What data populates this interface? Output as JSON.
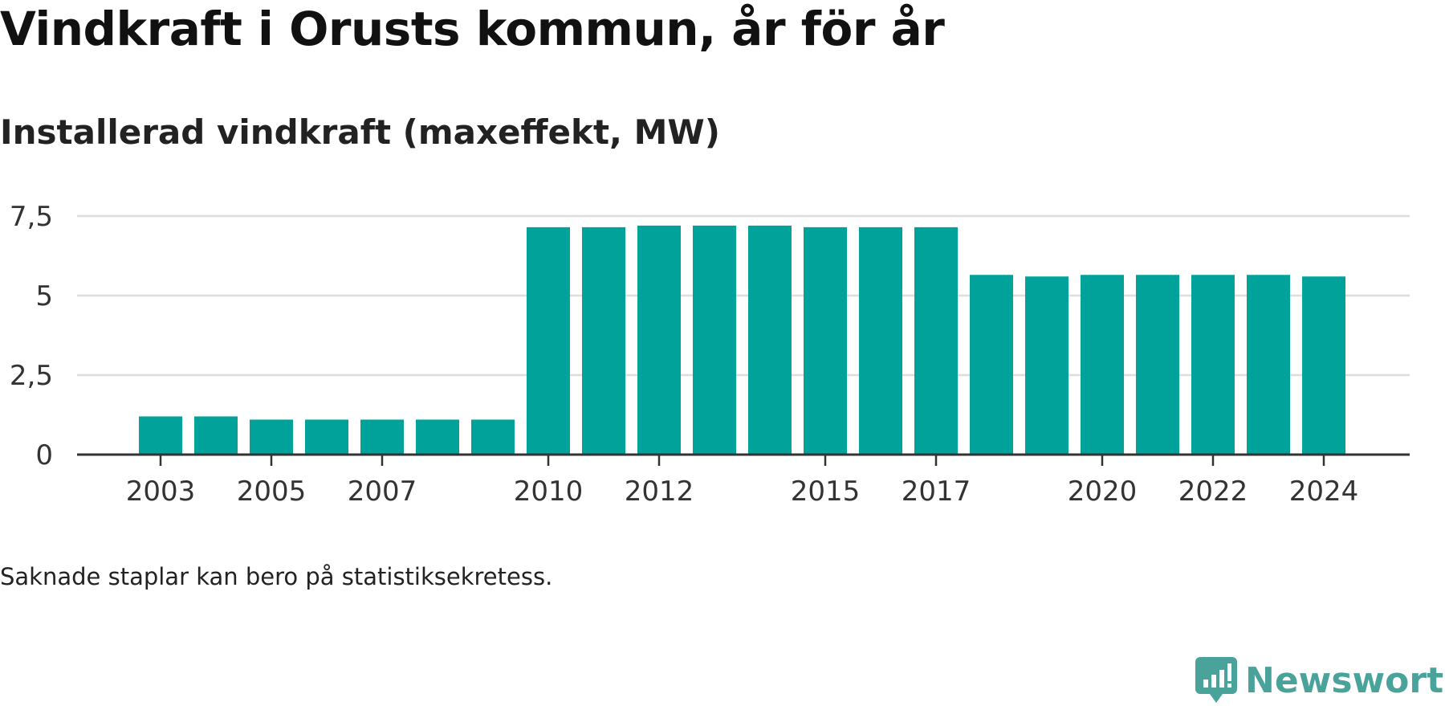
{
  "title": "Vindkraft i Orusts kommun, år för år",
  "subtitle": "Installerad vindkraft (maxeffekt, MW)",
  "note": "Saknade staplar kan bero på statistiksekretess.",
  "brand": {
    "name": "Newsworthy",
    "icon": "newsworthy-logo-icon",
    "color": "#4aa39b"
  },
  "colors": {
    "bar": "#00a29a",
    "grid": "#dddddd",
    "axis": "#333333"
  },
  "chart_data": {
    "type": "bar",
    "title": "Installerad vindkraft (maxeffekt, MW)",
    "xlabel": "",
    "ylabel": "",
    "categories": [
      "2003",
      "2004",
      "2005",
      "2006",
      "2007",
      "2008",
      "2009",
      "2010",
      "2011",
      "2012",
      "2013",
      "2014",
      "2015",
      "2016",
      "2017",
      "2018",
      "2019",
      "2020",
      "2021",
      "2022",
      "2023",
      "2024"
    ],
    "values": [
      1.2,
      1.2,
      1.1,
      1.1,
      1.1,
      1.1,
      1.1,
      7.15,
      7.15,
      7.2,
      7.2,
      7.2,
      7.15,
      7.15,
      7.15,
      5.65,
      5.6,
      5.65,
      5.65,
      5.65,
      5.65,
      5.6
    ],
    "ylim": [
      0,
      7.5
    ],
    "y_ticks": [
      0,
      2.5,
      5,
      7.5
    ],
    "y_tick_labels": [
      "0",
      "2,5",
      "5",
      "7,5"
    ],
    "x_tick_labels": [
      "2003",
      "2005",
      "2007",
      "2010",
      "2012",
      "2015",
      "2017",
      "2020",
      "2022",
      "2024"
    ],
    "grid": true,
    "legend": "none"
  }
}
